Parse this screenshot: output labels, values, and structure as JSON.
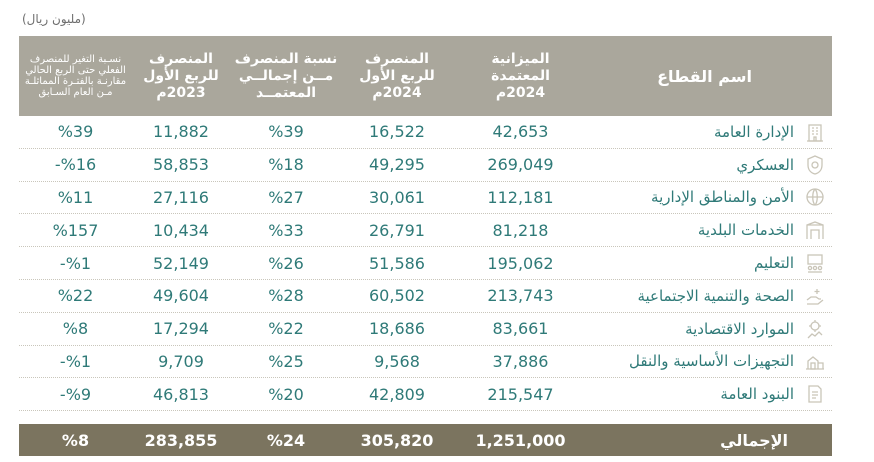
{
  "unit_note": "(مليون ريال)",
  "headers": {
    "sector": "اسم القطاع",
    "budget": [
      "الميزانية",
      "المعتمدة",
      "2024م"
    ],
    "spend_2024": [
      "المنصرف",
      "للربع الأول",
      "2024م"
    ],
    "share": [
      "نسبة المنصرف",
      "مــن إجمالــي",
      "المعتمــد"
    ],
    "spend_2023": [
      "المنصرف",
      "للربع الأول",
      "2023م"
    ],
    "change": [
      "نسـبة التغير للمنصرف",
      "الفعلي حتى الربع الحالي",
      "مقارنـة بالفتـرة المماثلـة",
      "مـن العام السـابق"
    ]
  },
  "rows": [
    {
      "sector": "الإدارة العامة",
      "icon": "building-icon",
      "budget": "42,653",
      "spend_2024": "16,522",
      "share": "%39",
      "spend_2023": "11,882",
      "change": "%39"
    },
    {
      "sector": "العسكري",
      "icon": "shield-icon",
      "budget": "269,049",
      "spend_2024": "49,295",
      "share": "%18",
      "spend_2023": "58,853",
      "change": "%16-"
    },
    {
      "sector": "الأمن والمناطق الإدارية",
      "icon": "globe-icon",
      "budget": "112,181",
      "spend_2024": "30,061",
      "share": "%27",
      "spend_2023": "27,116",
      "change": "%11"
    },
    {
      "sector": "الخدمات البلدية",
      "icon": "municipal-gate-icon",
      "budget": "81,218",
      "spend_2024": "26,791",
      "share": "%33",
      "spend_2023": "10,434",
      "change": "%157"
    },
    {
      "sector": "التعليم",
      "icon": "classroom-icon",
      "budget": "195,062",
      "spend_2024": "51,586",
      "share": "%26",
      "spend_2023": "52,149",
      "change": "%1-"
    },
    {
      "sector": "الصحة والتنمية الاجتماعية",
      "icon": "health-hand-icon",
      "budget": "213,743",
      "spend_2024": "60,502",
      "share": "%28",
      "spend_2023": "49,604",
      "change": "%22"
    },
    {
      "sector": "الموارد الاقتصادية",
      "icon": "economy-gear-icon",
      "budget": "83,661",
      "spend_2024": "18,686",
      "share": "%22",
      "spend_2023": "17,294",
      "change": "%8"
    },
    {
      "sector": "التجهيزات الأساسية والنقل",
      "icon": "infrastructure-icon",
      "budget": "37,886",
      "spend_2024": "9,568",
      "share": "%25",
      "spend_2023": "9,709",
      "change": "%1-"
    },
    {
      "sector": "البنود العامة",
      "icon": "document-icon",
      "budget": "215,547",
      "spend_2024": "42,809",
      "share": "%20",
      "spend_2023": "46,813",
      "change": "%9-"
    }
  ],
  "total": {
    "sector": "الإجمالي",
    "budget": "1,251,000",
    "spend_2024": "305,820",
    "share": "%24",
    "spend_2023": "283,855",
    "change": "%8"
  },
  "colors": {
    "header_bg": "#aaa79c",
    "total_bg": "#7b745f",
    "text": "#2f7a78",
    "icon": "#c9c5b8"
  }
}
